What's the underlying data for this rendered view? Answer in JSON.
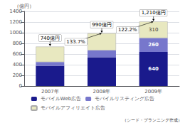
{
  "chart_data": {
    "type": "bar",
    "stacked": true,
    "categories": [
      "2007年",
      "2008年",
      "2009年"
    ],
    "series": [
      {
        "name": "モバイルWeb広告",
        "color": "#1a1a8c",
        "values": [
          380,
          540,
          640
        ],
        "value_labels": [
          null,
          null,
          "640"
        ]
      },
      {
        "name": "モバイルリスティング広告",
        "color": "#7777cc",
        "values": [
          70,
          130,
          260
        ],
        "value_labels": [
          null,
          null,
          "260"
        ]
      },
      {
        "name": "モバイルアフィリエイト広告",
        "color": "#e8e8c0",
        "values": [
          290,
          320,
          310
        ],
        "value_labels": [
          null,
          null,
          "310"
        ]
      }
    ],
    "ylabel": "（億円）",
    "ylim": [
      0,
      1400
    ],
    "yticks": [
      0,
      200,
      400,
      600,
      800,
      1000,
      1200,
      1400
    ],
    "grid": true,
    "legend": "bottom",
    "annotations": [
      {
        "text": "740億円",
        "x": "2007年",
        "y": 740
      },
      {
        "text": "133.7%",
        "x": [
          "2007年",
          "2008年"
        ],
        "y": 990
      },
      {
        "text": "990億円",
        "x": "2008年",
        "y": 990
      },
      {
        "text": "122.2%",
        "x": [
          "2008年",
          "2009年"
        ],
        "y": 1210
      },
      {
        "text": "1,210億円",
        "x": "2009年",
        "y": 1210
      },
      {
        "text": "（シード・プランニング作成）"
      }
    ]
  }
}
